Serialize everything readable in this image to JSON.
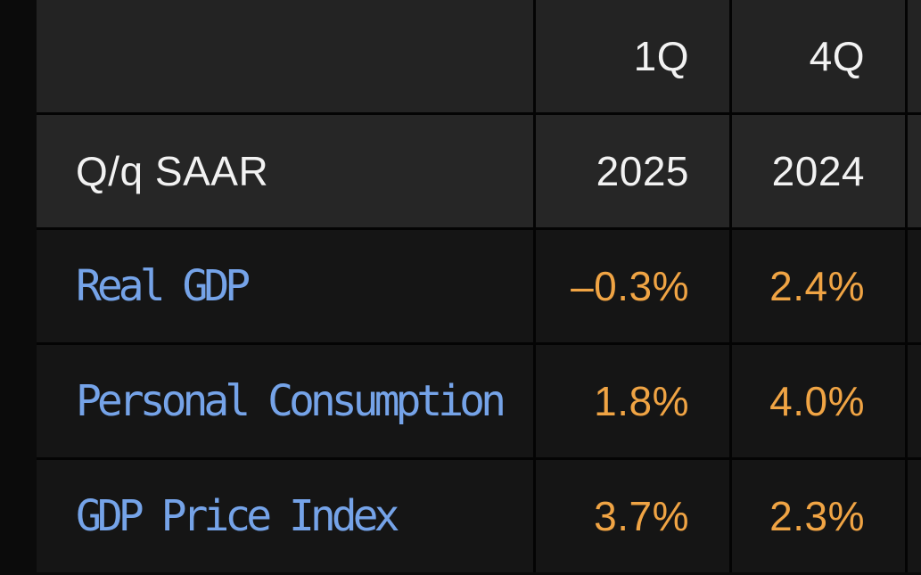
{
  "table": {
    "title_context": "Q/q SAAR",
    "rows": [
      {
        "type": "header",
        "cells": [
          "",
          "1Q",
          "4Q",
          ""
        ]
      },
      {
        "type": "header",
        "cells": [
          "Q/q SAAR",
          "2025",
          "2024",
          ""
        ]
      },
      {
        "type": "data",
        "cells": [
          "Real GDP",
          "–0.3%",
          "2.4%",
          ""
        ]
      },
      {
        "type": "data",
        "cells": [
          "Personal Consumption",
          "1.8%",
          "4.0%",
          ""
        ]
      },
      {
        "type": "data",
        "cells": [
          "GDP Price Index",
          "3.7%",
          "2.3%",
          ""
        ]
      }
    ]
  },
  "colors": {
    "page_bg": "#0b0b0b",
    "grid_line": "#040404",
    "header_row1_bg": "#232323",
    "header_row2_bg": "#262626",
    "data_row_bg": "#151515",
    "white_text": "#f2f2f2",
    "blue_text": "#75a3e8",
    "orange_text": "#f0a444"
  }
}
